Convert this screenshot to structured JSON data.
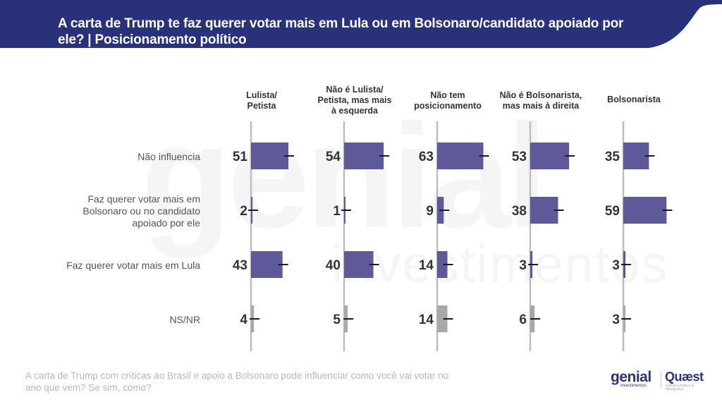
{
  "header": {
    "title": "A carta de Trump te faz querer votar mais em Lula ou em Bolsonaro/candidato apoiado por ele? | Posicionamento político",
    "background_color": "#28317a"
  },
  "watermark": {
    "main": "genial",
    "sub": "investimentos"
  },
  "footer": {
    "question": "A carta de Trump com críticas ao Brasil e apoio a Bolsonaro pode influenciar como você vai votar no ano que vem? Se sim, como?"
  },
  "logos": {
    "genial": "genial",
    "genial_sub": "investimentos",
    "quaest": "Quæst",
    "quaest_sub": "CONSULTORIA & PESQUISA"
  },
  "chart_data": {
    "type": "bar",
    "orientation": "horizontal",
    "layout": "small-multiples",
    "title": "A carta de Trump te faz querer votar mais em Lula ou em Bolsonaro/candidato apoiado por ele? | Posicionamento político",
    "unit": "%",
    "panels": [
      "Lulista/\nPetista",
      "Não é Lulista/\nPetista, mas mais\nà esquerda",
      "Não tem\nposicionamento",
      "Não é Bolsonarista,\nmas mais à direita",
      "Bolsonarista"
    ],
    "categories": [
      "Não influencia",
      "Faz querer votar mais em\nBolsonaro ou no candidato\napoiado por ele",
      "Faz querer votar mais em Lula",
      "NS/NR"
    ],
    "series": [
      {
        "name": "Lulista/Petista",
        "values": [
          51,
          2,
          43,
          4
        ]
      },
      {
        "name": "Não é Lulista/Petista, mas mais à esquerda",
        "values": [
          54,
          1,
          40,
          5
        ]
      },
      {
        "name": "Não tem posicionamento",
        "values": [
          63,
          9,
          14,
          14
        ]
      },
      {
        "name": "Não é Bolsonarista, mas mais à direita",
        "values": [
          53,
          38,
          3,
          6
        ]
      },
      {
        "name": "Bolsonarista",
        "values": [
          35,
          59,
          3,
          3
        ]
      }
    ],
    "error_bars": true,
    "colors": {
      "main": "#5e5998",
      "nsnr": "#a8a8a8",
      "axis": "#bdbdbd",
      "error_bar": "#1a1a2e",
      "value_label": "#333333"
    },
    "xlim": [
      0,
      100
    ],
    "grid": false,
    "legend": "none"
  }
}
